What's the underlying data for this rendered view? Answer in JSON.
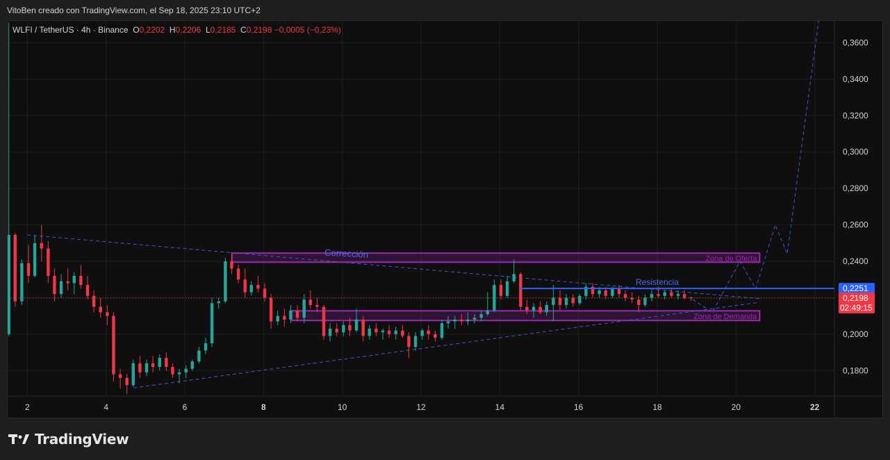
{
  "header": {
    "credit": "VitoBen creado con TradingView.com, el Sep 18, 2025 23:10 UTC+2"
  },
  "legend": {
    "symbol": "WLFI / TetherUS · 4h · Binance",
    "o_label": "O",
    "o_value": "0,2202",
    "h_label": "H",
    "h_value": "0,2206",
    "l_label": "L",
    "l_value": "0,2185",
    "c_label": "C",
    "c_value": "0,2198",
    "change": "−0,0005 (−0,23%)"
  },
  "brand": {
    "name": "TradingView",
    "logo_icon": "tradingview-logo-icon"
  },
  "colors": {
    "up": "#26a69a",
    "down": "#f23645",
    "grid": "#1f1f1f",
    "zone": "#9c27b0",
    "trend": "#3b5bdb",
    "resistance": "#2962ff"
  },
  "chart_data": {
    "type": "candlestick",
    "x_axis": {
      "ticks": [
        "2",
        "4",
        "6",
        "8",
        "10",
        "12",
        "14",
        "16",
        "18",
        "20",
        "22"
      ],
      "bold_ticks": [
        "8",
        "22"
      ],
      "range_days": [
        1.5,
        22.5
      ]
    },
    "y_axis": {
      "ticks": [
        "0,1800",
        "0,2000",
        "0,2200",
        "0,2400",
        "0,2600",
        "0,2800",
        "0,3000",
        "0,3200",
        "0,3400",
        "0,3600"
      ],
      "range": [
        0.166,
        0.372
      ]
    },
    "price_label": {
      "value": "0,2198",
      "countdown": "02:49:15"
    },
    "resistance_label": {
      "text": "Resistencia",
      "value": "0,2251",
      "price": 0.2251,
      "from_day": 14.5
    },
    "current_price": 0.2198,
    "zones": [
      {
        "label": "Corrección",
        "top": 0.2445,
        "bottom": 0.2395,
        "from_day": 7.2,
        "to_day": 20.6,
        "name_label": "Zona de Oferta"
      },
      {
        "label": "",
        "top": 0.2128,
        "bottom": 0.2075,
        "from_day": 8.7,
        "to_day": 20.6,
        "name_label": "Zona de Demanda"
      }
    ],
    "trendlines": [
      {
        "from": [
          2.0,
          0.2545
        ],
        "to": [
          20.6,
          0.2195
        ]
      },
      {
        "from": [
          4.7,
          0.1705
        ],
        "to": [
          20.6,
          0.2175
        ]
      }
    ],
    "projection": [
      [
        18.9,
        0.219
      ],
      [
        19.4,
        0.212
      ],
      [
        20.1,
        0.24
      ],
      [
        20.5,
        0.225
      ],
      [
        21.0,
        0.26
      ],
      [
        21.3,
        0.244
      ],
      [
        22.1,
        0.372
      ]
    ],
    "ohlc": [
      {
        "t": 1.53,
        "o": 0.2,
        "h": 0.371,
        "l": 0.199,
        "c": 0.2545
      },
      {
        "t": 1.69,
        "o": 0.2545,
        "h": 0.2555,
        "l": 0.215,
        "c": 0.218
      },
      {
        "t": 1.86,
        "o": 0.218,
        "h": 0.241,
        "l": 0.216,
        "c": 0.239
      },
      {
        "t": 2.03,
        "o": 0.239,
        "h": 0.249,
        "l": 0.228,
        "c": 0.232
      },
      {
        "t": 2.19,
        "o": 0.232,
        "h": 0.254,
        "l": 0.231,
        "c": 0.25
      },
      {
        "t": 2.36,
        "o": 0.25,
        "h": 0.26,
        "l": 0.24,
        "c": 0.247
      },
      {
        "t": 2.53,
        "o": 0.247,
        "h": 0.251,
        "l": 0.228,
        "c": 0.232
      },
      {
        "t": 2.69,
        "o": 0.232,
        "h": 0.236,
        "l": 0.218,
        "c": 0.222
      },
      {
        "t": 2.86,
        "o": 0.222,
        "h": 0.233,
        "l": 0.22,
        "c": 0.229
      },
      {
        "t": 3.03,
        "o": 0.229,
        "h": 0.236,
        "l": 0.224,
        "c": 0.228
      },
      {
        "t": 3.19,
        "o": 0.228,
        "h": 0.234,
        "l": 0.222,
        "c": 0.232
      },
      {
        "t": 3.36,
        "o": 0.232,
        "h": 0.238,
        "l": 0.225,
        "c": 0.227
      },
      {
        "t": 3.53,
        "o": 0.227,
        "h": 0.232,
        "l": 0.219,
        "c": 0.221
      },
      {
        "t": 3.69,
        "o": 0.221,
        "h": 0.224,
        "l": 0.212,
        "c": 0.215
      },
      {
        "t": 3.86,
        "o": 0.215,
        "h": 0.22,
        "l": 0.209,
        "c": 0.212
      },
      {
        "t": 4.03,
        "o": 0.212,
        "h": 0.216,
        "l": 0.205,
        "c": 0.21
      },
      {
        "t": 4.19,
        "o": 0.21,
        "h": 0.212,
        "l": 0.174,
        "c": 0.178
      },
      {
        "t": 4.36,
        "o": 0.178,
        "h": 0.181,
        "l": 0.17,
        "c": 0.176
      },
      {
        "t": 4.53,
        "o": 0.176,
        "h": 0.178,
        "l": 0.167,
        "c": 0.172
      },
      {
        "t": 4.69,
        "o": 0.172,
        "h": 0.186,
        "l": 0.171,
        "c": 0.184
      },
      {
        "t": 4.86,
        "o": 0.184,
        "h": 0.188,
        "l": 0.176,
        "c": 0.179
      },
      {
        "t": 5.03,
        "o": 0.179,
        "h": 0.186,
        "l": 0.177,
        "c": 0.184
      },
      {
        "t": 5.19,
        "o": 0.184,
        "h": 0.188,
        "l": 0.179,
        "c": 0.182
      },
      {
        "t": 5.36,
        "o": 0.182,
        "h": 0.189,
        "l": 0.18,
        "c": 0.187
      },
      {
        "t": 5.53,
        "o": 0.187,
        "h": 0.19,
        "l": 0.18,
        "c": 0.182
      },
      {
        "t": 5.69,
        "o": 0.182,
        "h": 0.184,
        "l": 0.176,
        "c": 0.178
      },
      {
        "t": 5.86,
        "o": 0.178,
        "h": 0.181,
        "l": 0.173,
        "c": 0.179
      },
      {
        "t": 6.03,
        "o": 0.179,
        "h": 0.183,
        "l": 0.176,
        "c": 0.181
      },
      {
        "t": 6.19,
        "o": 0.181,
        "h": 0.186,
        "l": 0.18,
        "c": 0.185
      },
      {
        "t": 6.36,
        "o": 0.185,
        "h": 0.193,
        "l": 0.184,
        "c": 0.191
      },
      {
        "t": 6.53,
        "o": 0.191,
        "h": 0.198,
        "l": 0.189,
        "c": 0.195
      },
      {
        "t": 6.69,
        "o": 0.195,
        "h": 0.22,
        "l": 0.193,
        "c": 0.217
      },
      {
        "t": 6.86,
        "o": 0.217,
        "h": 0.22,
        "l": 0.214,
        "c": 0.218
      },
      {
        "t": 7.03,
        "o": 0.218,
        "h": 0.242,
        "l": 0.217,
        "c": 0.24
      },
      {
        "t": 7.19,
        "o": 0.24,
        "h": 0.245,
        "l": 0.233,
        "c": 0.236
      },
      {
        "t": 7.36,
        "o": 0.236,
        "h": 0.238,
        "l": 0.228,
        "c": 0.23
      },
      {
        "t": 7.53,
        "o": 0.23,
        "h": 0.236,
        "l": 0.22,
        "c": 0.223
      },
      {
        "t": 7.69,
        "o": 0.223,
        "h": 0.229,
        "l": 0.221,
        "c": 0.227
      },
      {
        "t": 7.86,
        "o": 0.227,
        "h": 0.232,
        "l": 0.223,
        "c": 0.225
      },
      {
        "t": 8.03,
        "o": 0.225,
        "h": 0.228,
        "l": 0.218,
        "c": 0.22
      },
      {
        "t": 8.19,
        "o": 0.22,
        "h": 0.222,
        "l": 0.203,
        "c": 0.207
      },
      {
        "t": 8.36,
        "o": 0.207,
        "h": 0.213,
        "l": 0.205,
        "c": 0.21
      },
      {
        "t": 8.53,
        "o": 0.21,
        "h": 0.214,
        "l": 0.204,
        "c": 0.208
      },
      {
        "t": 8.69,
        "o": 0.208,
        "h": 0.216,
        "l": 0.206,
        "c": 0.213
      },
      {
        "t": 8.86,
        "o": 0.213,
        "h": 0.216,
        "l": 0.207,
        "c": 0.209
      },
      {
        "t": 9.03,
        "o": 0.209,
        "h": 0.222,
        "l": 0.206,
        "c": 0.219
      },
      {
        "t": 9.19,
        "o": 0.219,
        "h": 0.224,
        "l": 0.214,
        "c": 0.216
      },
      {
        "t": 9.36,
        "o": 0.216,
        "h": 0.22,
        "l": 0.212,
        "c": 0.215
      },
      {
        "t": 9.53,
        "o": 0.215,
        "h": 0.216,
        "l": 0.197,
        "c": 0.199
      },
      {
        "t": 9.69,
        "o": 0.199,
        "h": 0.206,
        "l": 0.196,
        "c": 0.203
      },
      {
        "t": 9.86,
        "o": 0.203,
        "h": 0.206,
        "l": 0.199,
        "c": 0.201
      },
      {
        "t": 10.03,
        "o": 0.201,
        "h": 0.207,
        "l": 0.199,
        "c": 0.205
      },
      {
        "t": 10.19,
        "o": 0.205,
        "h": 0.209,
        "l": 0.199,
        "c": 0.202
      },
      {
        "t": 10.36,
        "o": 0.202,
        "h": 0.214,
        "l": 0.201,
        "c": 0.208
      },
      {
        "t": 10.53,
        "o": 0.208,
        "h": 0.21,
        "l": 0.196,
        "c": 0.199
      },
      {
        "t": 10.69,
        "o": 0.199,
        "h": 0.205,
        "l": 0.197,
        "c": 0.203
      },
      {
        "t": 10.86,
        "o": 0.203,
        "h": 0.206,
        "l": 0.199,
        "c": 0.201
      },
      {
        "t": 11.03,
        "o": 0.201,
        "h": 0.203,
        "l": 0.197,
        "c": 0.202
      },
      {
        "t": 11.19,
        "o": 0.202,
        "h": 0.205,
        "l": 0.198,
        "c": 0.2
      },
      {
        "t": 11.36,
        "o": 0.2,
        "h": 0.204,
        "l": 0.197,
        "c": 0.202
      },
      {
        "t": 11.53,
        "o": 0.202,
        "h": 0.205,
        "l": 0.198,
        "c": 0.199
      },
      {
        "t": 11.69,
        "o": 0.199,
        "h": 0.201,
        "l": 0.187,
        "c": 0.193
      },
      {
        "t": 11.86,
        "o": 0.193,
        "h": 0.201,
        "l": 0.191,
        "c": 0.199
      },
      {
        "t": 12.03,
        "o": 0.199,
        "h": 0.203,
        "l": 0.197,
        "c": 0.202
      },
      {
        "t": 12.19,
        "o": 0.202,
        "h": 0.205,
        "l": 0.197,
        "c": 0.2
      },
      {
        "t": 12.36,
        "o": 0.2,
        "h": 0.202,
        "l": 0.196,
        "c": 0.198
      },
      {
        "t": 12.53,
        "o": 0.198,
        "h": 0.208,
        "l": 0.197,
        "c": 0.206
      },
      {
        "t": 12.69,
        "o": 0.206,
        "h": 0.21,
        "l": 0.203,
        "c": 0.207
      },
      {
        "t": 12.86,
        "o": 0.207,
        "h": 0.21,
        "l": 0.203,
        "c": 0.208
      },
      {
        "t": 13.03,
        "o": 0.208,
        "h": 0.211,
        "l": 0.205,
        "c": 0.207
      },
      {
        "t": 13.19,
        "o": 0.207,
        "h": 0.212,
        "l": 0.205,
        "c": 0.208
      },
      {
        "t": 13.36,
        "o": 0.208,
        "h": 0.211,
        "l": 0.206,
        "c": 0.209
      },
      {
        "t": 13.53,
        "o": 0.209,
        "h": 0.213,
        "l": 0.207,
        "c": 0.211
      },
      {
        "t": 13.69,
        "o": 0.211,
        "h": 0.223,
        "l": 0.21,
        "c": 0.213
      },
      {
        "t": 13.86,
        "o": 0.213,
        "h": 0.23,
        "l": 0.212,
        "c": 0.227
      },
      {
        "t": 14.03,
        "o": 0.227,
        "h": 0.23,
        "l": 0.219,
        "c": 0.221
      },
      {
        "t": 14.19,
        "o": 0.221,
        "h": 0.232,
        "l": 0.22,
        "c": 0.229
      },
      {
        "t": 14.36,
        "o": 0.229,
        "h": 0.241,
        "l": 0.228,
        "c": 0.233
      },
      {
        "t": 14.53,
        "o": 0.233,
        "h": 0.234,
        "l": 0.213,
        "c": 0.215
      },
      {
        "t": 14.69,
        "o": 0.215,
        "h": 0.219,
        "l": 0.211,
        "c": 0.213
      },
      {
        "t": 14.86,
        "o": 0.213,
        "h": 0.217,
        "l": 0.209,
        "c": 0.215
      },
      {
        "t": 15.03,
        "o": 0.215,
        "h": 0.218,
        "l": 0.211,
        "c": 0.212
      },
      {
        "t": 15.19,
        "o": 0.212,
        "h": 0.218,
        "l": 0.21,
        "c": 0.216
      },
      {
        "t": 15.36,
        "o": 0.216,
        "h": 0.227,
        "l": 0.207,
        "c": 0.22
      },
      {
        "t": 15.53,
        "o": 0.22,
        "h": 0.224,
        "l": 0.213,
        "c": 0.216
      },
      {
        "t": 15.69,
        "o": 0.216,
        "h": 0.222,
        "l": 0.214,
        "c": 0.22
      },
      {
        "t": 15.86,
        "o": 0.22,
        "h": 0.222,
        "l": 0.215,
        "c": 0.217
      },
      {
        "t": 16.03,
        "o": 0.217,
        "h": 0.222,
        "l": 0.216,
        "c": 0.221
      },
      {
        "t": 16.19,
        "o": 0.221,
        "h": 0.228,
        "l": 0.219,
        "c": 0.226
      },
      {
        "t": 16.36,
        "o": 0.226,
        "h": 0.228,
        "l": 0.22,
        "c": 0.222
      },
      {
        "t": 16.53,
        "o": 0.222,
        "h": 0.226,
        "l": 0.22,
        "c": 0.224
      },
      {
        "t": 16.69,
        "o": 0.224,
        "h": 0.226,
        "l": 0.219,
        "c": 0.221
      },
      {
        "t": 16.86,
        "o": 0.221,
        "h": 0.226,
        "l": 0.22,
        "c": 0.225
      },
      {
        "t": 17.03,
        "o": 0.225,
        "h": 0.227,
        "l": 0.22,
        "c": 0.222
      },
      {
        "t": 17.19,
        "o": 0.222,
        "h": 0.224,
        "l": 0.218,
        "c": 0.22
      },
      {
        "t": 17.36,
        "o": 0.22,
        "h": 0.223,
        "l": 0.217,
        "c": 0.219
      },
      {
        "t": 17.53,
        "o": 0.219,
        "h": 0.221,
        "l": 0.212,
        "c": 0.216
      },
      {
        "t": 17.69,
        "o": 0.216,
        "h": 0.222,
        "l": 0.215,
        "c": 0.22
      },
      {
        "t": 17.86,
        "o": 0.22,
        "h": 0.224,
        "l": 0.218,
        "c": 0.222
      },
      {
        "t": 18.03,
        "o": 0.222,
        "h": 0.226,
        "l": 0.22,
        "c": 0.221
      },
      {
        "t": 18.19,
        "o": 0.221,
        "h": 0.224,
        "l": 0.219,
        "c": 0.223
      },
      {
        "t": 18.36,
        "o": 0.223,
        "h": 0.225,
        "l": 0.22,
        "c": 0.221
      },
      {
        "t": 18.53,
        "o": 0.221,
        "h": 0.224,
        "l": 0.219,
        "c": 0.222
      },
      {
        "t": 18.69,
        "o": 0.222,
        "h": 0.224,
        "l": 0.219,
        "c": 0.22
      },
      {
        "t": 18.86,
        "o": 0.2202,
        "h": 0.2206,
        "l": 0.2185,
        "c": 0.2198
      }
    ]
  }
}
